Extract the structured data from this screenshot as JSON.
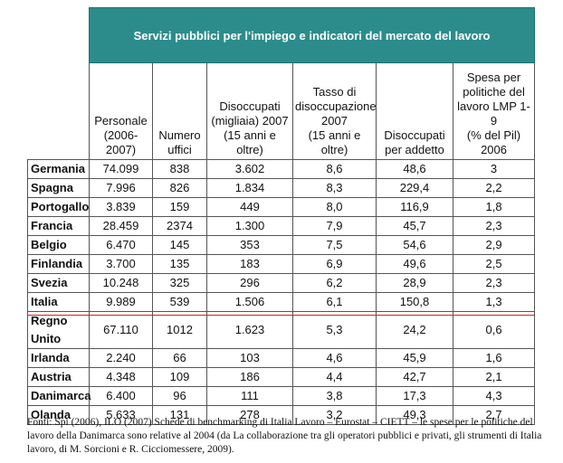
{
  "table": {
    "title": "Servizi pubblici per l'impiego e indicatori del mercato del lavoro",
    "headers": [
      [
        "Personale",
        "(2006-2007)"
      ],
      [
        "Numero",
        "uffici"
      ],
      [
        "Disoccupati",
        "(migliaia) 2007",
        "(15 anni e oltre)"
      ],
      [
        "Tasso di",
        "disoccupazione",
        "2007",
        "(15 anni e oltre)"
      ],
      [
        "Disoccupati",
        "per addetto"
      ],
      [
        "Spesa per",
        "politiche del",
        "lavoro LMP 1-9",
        "(% del Pil)",
        "2006"
      ]
    ],
    "rows": [
      [
        "Germania",
        "74.099",
        "838",
        "3.602",
        "8,6",
        "48,6",
        "3"
      ],
      [
        "Spagna",
        "7.996",
        "826",
        "1.834",
        "8,3",
        "229,4",
        "2,2"
      ],
      [
        "Portogallo",
        "3.839",
        "159",
        "449",
        "8,0",
        "116,9",
        "1,8"
      ],
      [
        "Francia",
        "28.459",
        "2374",
        "1.300",
        "7,9",
        "45,7",
        "2,3"
      ],
      [
        "Belgio",
        "6.470",
        "145",
        "353",
        "7,5",
        "54,6",
        "2,9"
      ],
      [
        "Finlandia",
        "3.700",
        "135",
        "183",
        "6,9",
        "49,6",
        "2,5"
      ],
      [
        "Svezia",
        "10.248",
        "325",
        "296",
        "6,2",
        "28,9",
        "2,3"
      ],
      [
        "Italia",
        "9.989",
        "539",
        "1.506",
        "6,1",
        "150,8",
        "1,3"
      ],
      [
        "Regno Unito",
        "67.110",
        "1012",
        "1.623",
        "5,3",
        "24,2",
        "0,6"
      ],
      [
        "Irlanda",
        "2.240",
        "66",
        "103",
        "4,6",
        "45,9",
        "1,6"
      ],
      [
        "Austria",
        "4.348",
        "109",
        "186",
        "4,4",
        "42,7",
        "2,1"
      ],
      [
        "Danimarca",
        "6.400",
        "96",
        "111",
        "3,8",
        "17,3",
        "4,3"
      ],
      [
        "Olanda",
        "5.633",
        "131",
        "278",
        "3,2",
        "49,3",
        "2,7"
      ]
    ]
  },
  "footer": {
    "text": "Fonti: Spi (2006), ILO (2007) Schede di benchmarking di Italia Lavoro – Eurostat – CIETT – le spese per le politiche del lavoro della Danimarca sono relative al 2004 (da La collaborazione tra gli operatori pubblici e privati, gli strumenti di Italia lavoro, di M. Sorcioni e R. Cicciomessere, 2009)."
  },
  "colors": {
    "banner": "#2c8c8c",
    "rule": "#d62020"
  }
}
